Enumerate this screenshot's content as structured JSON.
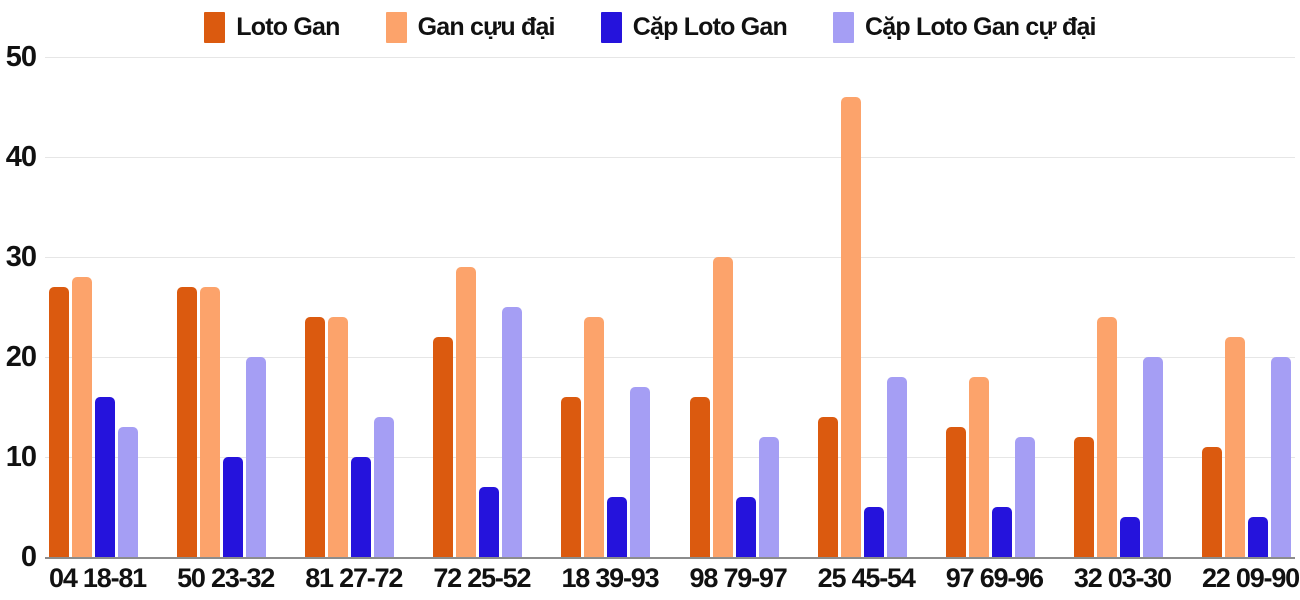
{
  "chart_data": {
    "type": "bar",
    "title": "",
    "categories": [
      "04 18-81",
      "50 23-32",
      "81 27-72",
      "72 25-52",
      "18 39-93",
      "98 79-97",
      "25 45-54",
      "97 69-96",
      "32 03-30",
      "22 09-90"
    ],
    "series": [
      {
        "name": "Loto Gan",
        "color": "#DB5A0F",
        "values": [
          27,
          27,
          24,
          22,
          16,
          16,
          14,
          13,
          12,
          11
        ]
      },
      {
        "name": "Gan cựu đại",
        "color": "#FCA36B",
        "values": [
          28,
          27,
          24,
          29,
          24,
          30,
          46,
          18,
          24,
          22
        ]
      },
      {
        "name": "Cặp Loto Gan",
        "color": "#2513DC",
        "values": [
          16,
          10,
          10,
          7,
          6,
          6,
          5,
          5,
          4,
          4
        ]
      },
      {
        "name": "Cặp Loto Gan cự đại",
        "color": "#A59EF4",
        "values": [
          13,
          20,
          14,
          25,
          17,
          12,
          18,
          12,
          20,
          20
        ]
      }
    ],
    "xlabel": "",
    "ylabel": "",
    "y_ticks": [
      0,
      10,
      20,
      30,
      40,
      50
    ],
    "ylim": [
      0,
      50
    ],
    "grid": true,
    "legend_position": "top",
    "colors": {
      "gridline": "#E6E6E6",
      "baseline": "#8C8C8C",
      "text": "#111111",
      "background": "#FFFFFF"
    }
  }
}
